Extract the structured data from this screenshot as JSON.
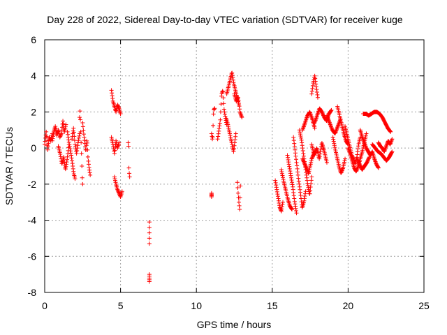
{
  "chart_data": {
    "type": "scatter",
    "title": "Day 228 of 2022, Sidereal Day-to-day VTEC variation (SDTVAR) for receiver kuge",
    "xlabel": "GPS time / hours",
    "ylabel": "SDTVAR / TECUs",
    "xlim": [
      0,
      25
    ],
    "ylim": [
      -8,
      6
    ],
    "xticks": [
      0,
      5,
      10,
      15,
      20,
      25
    ],
    "yticks": [
      -8,
      -6,
      -4,
      -2,
      0,
      2,
      4,
      6
    ],
    "xtick_labels": [
      "0",
      "5",
      "10",
      "15",
      "20",
      "25"
    ],
    "ytick_labels": [
      "-8",
      "-6",
      "-4",
      "-2",
      "0",
      "2",
      "4",
      "6"
    ],
    "grid": true,
    "marker": "+",
    "color": "#ff0000",
    "segments": [
      {
        "x0": 0.0,
        "x1": 0.5,
        "y": [
          0.2,
          0.9,
          -0.1,
          0.6,
          0.4,
          0.8
        ]
      },
      {
        "x0": 0.5,
        "x1": 1.4,
        "y": [
          0.4,
          0.9,
          1.2,
          0.7,
          1.0,
          0.6,
          0.8,
          1.5,
          0.9,
          1.3
        ]
      },
      {
        "x0": 0.9,
        "x1": 1.6,
        "y": [
          0.1,
          -0.3,
          -0.9,
          -0.5,
          -1.2,
          -0.6,
          0.2
        ]
      },
      {
        "x0": 1.5,
        "x1": 2.0,
        "y": [
          0.9,
          0.4,
          0.0,
          -0.4,
          -0.9,
          -1.4,
          -1.7
        ]
      },
      {
        "x0": 1.8,
        "x1": 2.3,
        "y": [
          0.5,
          1.1,
          0.2,
          -0.3,
          0.3,
          0.8
        ]
      },
      {
        "x0": 2.3,
        "x1": 2.5,
        "y": [
          1.7,
          2.1,
          1.4,
          0.6,
          0.0,
          -0.8,
          -1.6,
          -2.0
        ]
      },
      {
        "x0": 2.5,
        "x1": 3.0,
        "y": [
          1.4,
          0.8,
          0.3,
          -0.2,
          0.5,
          -0.6,
          -1.1,
          -1.5
        ]
      },
      {
        "x0": 4.4,
        "x1": 5.0,
        "y": [
          3.2,
          2.6,
          2.3,
          2.0,
          2.4,
          2.2,
          1.9
        ]
      },
      {
        "x0": 4.4,
        "x1": 4.9,
        "y": [
          0.6,
          0.2,
          -0.3,
          0.4,
          0.0,
          0.3
        ]
      },
      {
        "x0": 4.6,
        "x1": 5.1,
        "y": [
          -1.6,
          -2.0,
          -2.3,
          -2.5,
          -2.7,
          -2.4
        ]
      },
      {
        "x0": 5.5,
        "x1": 5.6,
        "y": [
          0.3,
          0.1,
          -1.1,
          -1.4,
          -1.6
        ]
      },
      {
        "x0": 6.9,
        "x1": 6.9,
        "y": [
          -4.1,
          -4.5,
          -4.9,
          -5.3
        ]
      },
      {
        "x0": 6.9,
        "x1": 6.9,
        "y": [
          -7.0,
          -7.2,
          -7.4
        ]
      },
      {
        "x0": 11.0,
        "x1": 11.0,
        "y": [
          -2.5,
          -2.7
        ]
      },
      {
        "x0": 11.0,
        "x1": 11.2,
        "y": [
          0.8,
          0.4,
          2.1,
          2.2
        ]
      },
      {
        "x0": 11.4,
        "x1": 12.0,
        "y": [
          0.5,
          1.0,
          1.5,
          3.0,
          3.2,
          2.1,
          1.7,
          1.3
        ]
      },
      {
        "x0": 12.0,
        "x1": 12.8,
        "y": [
          3.0,
          3.4,
          3.8,
          4.2,
          3.6,
          3.2,
          2.8,
          2.4
        ]
      },
      {
        "x0": 12.0,
        "x1": 12.6,
        "y": [
          1.6,
          1.0,
          0.4,
          -0.2,
          0.8
        ]
      },
      {
        "x0": 12.5,
        "x1": 13.0,
        "y": [
          3.0,
          2.6,
          2.8,
          2.0,
          1.7
        ]
      },
      {
        "x0": 12.7,
        "x1": 12.9,
        "y": [
          -1.9,
          -2.5,
          -3.0,
          -3.4,
          -2.1
        ]
      },
      {
        "x0": 15.2,
        "x1": 15.7,
        "y": [
          -1.8,
          -2.3,
          -2.8,
          -3.3,
          -3.5,
          -3.0
        ]
      },
      {
        "x0": 15.6,
        "x1": 16.3,
        "y": [
          -1.2,
          -1.8,
          -2.3,
          -2.8,
          -3.2,
          -3.4
        ]
      },
      {
        "x0": 16.0,
        "x1": 16.6,
        "y": [
          -0.4,
          -1.0,
          -1.6,
          -2.2,
          -3.0,
          -3.6
        ]
      },
      {
        "x0": 16.4,
        "x1": 17.2,
        "y": [
          0.6,
          -0.2,
          -1.0,
          -1.8,
          -2.5,
          -3.3,
          -3.0,
          -2.4
        ]
      },
      {
        "x0": 16.8,
        "x1": 17.6,
        "y": [
          1.0,
          0.4,
          -0.4,
          -1.2,
          -2.0,
          -2.6,
          -1.6
        ]
      },
      {
        "x0": 17.0,
        "x1": 17.8,
        "y": [
          1.0,
          1.4,
          1.8,
          2.0,
          1.6,
          1.1
        ]
      },
      {
        "x0": 17.0,
        "x1": 17.8,
        "y": [
          -0.6,
          -1.0,
          -1.4,
          -0.6,
          -0.2
        ]
      },
      {
        "x0": 17.6,
        "x1": 18.0,
        "y": [
          3.0,
          3.6,
          4.0,
          3.4,
          2.8
        ]
      },
      {
        "x0": 17.6,
        "x1": 18.6,
        "y": [
          0.2,
          -0.4,
          0.0,
          -0.6,
          0.3,
          -0.2,
          -0.8
        ]
      },
      {
        "x0": 17.8,
        "x1": 18.9,
        "y": [
          1.4,
          1.8,
          2.2,
          2.0,
          1.7,
          1.5,
          1.9,
          2.1
        ]
      },
      {
        "x0": 18.6,
        "x1": 19.5,
        "y": [
          1.8,
          1.4,
          1.0,
          0.8,
          1.2,
          1.6
        ]
      },
      {
        "x0": 19.0,
        "x1": 19.8,
        "y": [
          0.6,
          0.0,
          -0.5,
          -1.0,
          -1.4,
          -1.1,
          -0.6
        ]
      },
      {
        "x0": 19.3,
        "x1": 20.0,
        "y": [
          2.3,
          1.8,
          1.3,
          0.8,
          0.4,
          0.2
        ]
      },
      {
        "x0": 19.8,
        "x1": 20.8,
        "y": [
          1.2,
          0.8,
          0.4,
          0.0,
          -0.4,
          -0.6,
          -0.9,
          -0.5,
          0.2,
          0.6
        ]
      },
      {
        "x0": 20.0,
        "x1": 21.2,
        "y": [
          0.0,
          -0.3,
          -0.7,
          -1.1,
          -1.3,
          -1.0,
          -0.6,
          -0.2,
          0.3,
          0.8
        ]
      },
      {
        "x0": 20.6,
        "x1": 21.4,
        "y": [
          -0.6,
          -0.9,
          -1.2,
          -1.0,
          -0.8,
          -0.5
        ]
      },
      {
        "x0": 20.8,
        "x1": 22.0,
        "y": [
          1.0,
          0.6,
          0.3,
          0.0,
          -0.2,
          -0.4,
          -0.2,
          -0.6,
          -0.9,
          -1.1
        ]
      },
      {
        "x0": 21.0,
        "x1": 22.8,
        "y": [
          1.9,
          1.9,
          1.8,
          1.9,
          2.0,
          2.0,
          1.9,
          1.7,
          1.4,
          1.1,
          0.9
        ]
      },
      {
        "x0": 21.6,
        "x1": 22.9,
        "y": [
          0.2,
          0.0,
          -0.2,
          -0.3,
          -0.5,
          -0.7,
          -0.5,
          -0.2
        ]
      },
      {
        "x0": 22.0,
        "x1": 22.9,
        "y": [
          0.3,
          0.1,
          0.0,
          -0.2,
          0.1,
          0.4,
          0.2,
          0.5
        ]
      }
    ]
  }
}
